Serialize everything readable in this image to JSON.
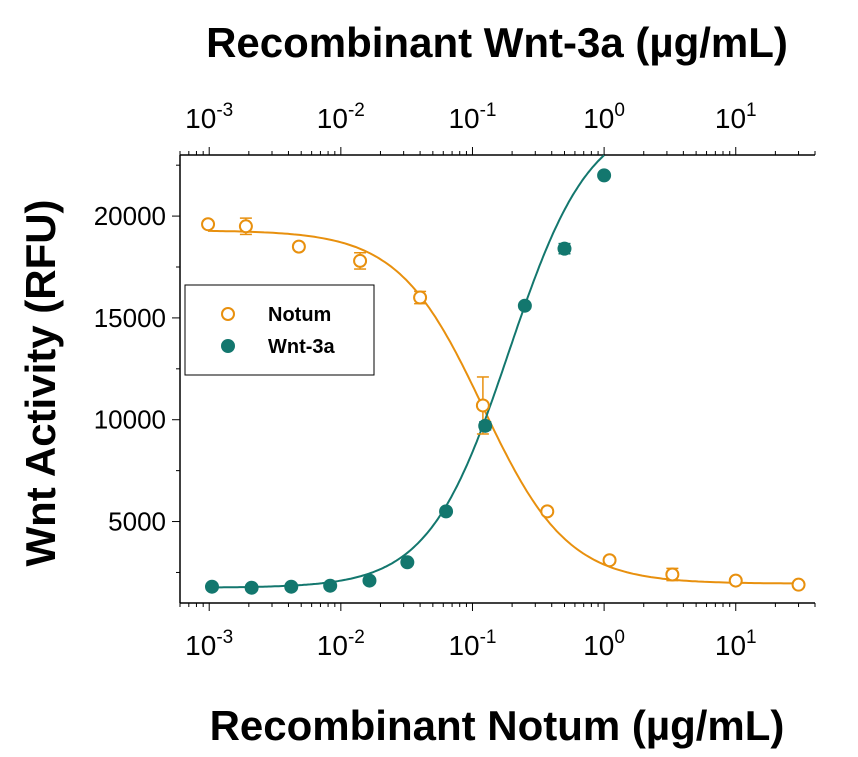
{
  "chart_data": {
    "type": "scatter",
    "title_top": "Recombinant Wnt-3a (µg/mL)",
    "xlabel": "Recombinant Notum (µg/mL)",
    "ylabel": "Wnt Activity (RFU)",
    "x_scale": "log",
    "xlim": [
      0.0006,
      40
    ],
    "ylim": [
      1000,
      23000
    ],
    "x_ticks": [
      {
        "value": 0.001,
        "base": "10",
        "exp": "-3"
      },
      {
        "value": 0.01,
        "base": "10",
        "exp": "-2"
      },
      {
        "value": 0.1,
        "base": "10",
        "exp": "-1"
      },
      {
        "value": 1,
        "base": "10",
        "exp": "0"
      },
      {
        "value": 10,
        "base": "10",
        "exp": "1"
      }
    ],
    "y_ticks": [
      {
        "value": 5000,
        "label": "5000"
      },
      {
        "value": 10000,
        "label": "10000"
      },
      {
        "value": 15000,
        "label": "15000"
      },
      {
        "value": 20000,
        "label": "20000"
      }
    ],
    "legend_position": "left-middle",
    "series": [
      {
        "name": "Notum",
        "color": "#E8900E",
        "marker": "open-circle",
        "points": [
          {
            "x": 0.00098,
            "y": 19600,
            "err": 150
          },
          {
            "x": 0.0019,
            "y": 19500,
            "err": 400
          },
          {
            "x": 0.0048,
            "y": 18500,
            "err": 150
          },
          {
            "x": 0.014,
            "y": 17800,
            "err": 400
          },
          {
            "x": 0.04,
            "y": 16000,
            "err": 300
          },
          {
            "x": 0.12,
            "y": 10700,
            "err": 1400
          },
          {
            "x": 0.37,
            "y": 5500,
            "err": 150
          },
          {
            "x": 1.1,
            "y": 3100,
            "err": 150
          },
          {
            "x": 3.3,
            "y": 2400,
            "err": 300
          },
          {
            "x": 10,
            "y": 2100,
            "err": 100
          },
          {
            "x": 30,
            "y": 1900,
            "err": 100
          }
        ],
        "fit": {
          "bottom": 1950,
          "top": 19300,
          "ec50": 0.12,
          "hill": -1.35
        }
      },
      {
        "name": "Wnt-3a",
        "color": "#13776E",
        "marker": "filled-circle",
        "points": [
          {
            "x": 0.00105,
            "y": 1800,
            "err": 0
          },
          {
            "x": 0.0021,
            "y": 1750,
            "err": 0
          },
          {
            "x": 0.0042,
            "y": 1800,
            "err": 0
          },
          {
            "x": 0.0083,
            "y": 1850,
            "err": 0
          },
          {
            "x": 0.0165,
            "y": 2100,
            "err": 0
          },
          {
            "x": 0.032,
            "y": 3000,
            "err": 0
          },
          {
            "x": 0.063,
            "y": 5500,
            "err": 0
          },
          {
            "x": 0.125,
            "y": 9700,
            "err": 200
          },
          {
            "x": 0.25,
            "y": 15600,
            "err": 0
          },
          {
            "x": 0.5,
            "y": 18400,
            "err": 250
          },
          {
            "x": 1.0,
            "y": 22000,
            "err": 0
          }
        ],
        "fit": {
          "bottom": 1750,
          "top": 25000,
          "ec50": 0.19,
          "hill": 1.42
        }
      }
    ]
  }
}
